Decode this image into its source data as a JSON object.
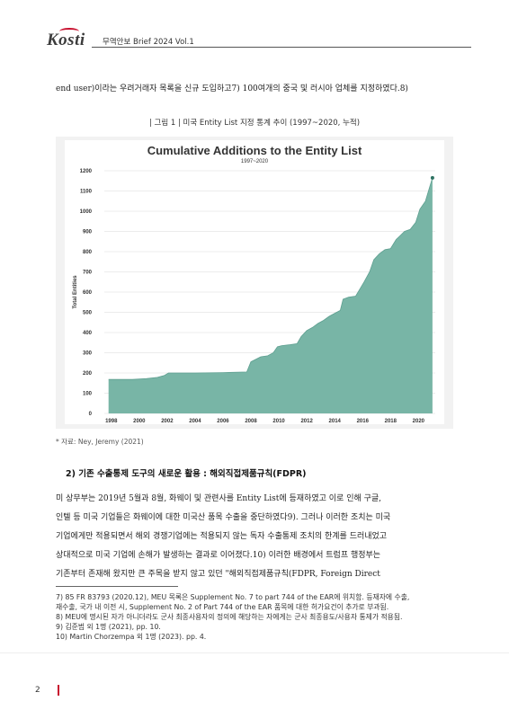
{
  "header": {
    "logo": "Kosti",
    "title": "무역안보 Brief 2024 Vol.1"
  },
  "intro_line": "end user)이라는 우려거래자 목록을 신규 도입하고7) 100여개의 중국 및 러시아 업체를 지정하였다.8)",
  "figure_caption": "| 그림 1 | 미국 Entity List 지정 통계 추이 (1997~2020, 누적)",
  "chart_data": {
    "type": "area",
    "title": "Cumulative Additions to the Entity List",
    "subtitle": "1997~2020",
    "ylabel": "Total Entities",
    "xlabel": "",
    "ylim": [
      0,
      1200
    ],
    "xlim": [
      1997.5,
      2021.2
    ],
    "yticks": [
      "0",
      "100",
      "200",
      "300",
      "400",
      "500",
      "600",
      "700",
      "800",
      "900",
      "1000",
      "1100",
      "1200"
    ],
    "xticks": [
      "1998",
      "2000",
      "2002",
      "2004",
      "2006",
      "2008",
      "2010",
      "2012",
      "2014",
      "2016",
      "2018",
      "2020"
    ],
    "grid": true,
    "color": "#78b5a6",
    "x": [
      1997.8,
      1999.5,
      2000.5,
      2001.3,
      2001.8,
      2002.1,
      2004.0,
      2006.0,
      2007.7,
      2008.0,
      2008.7,
      2009.2,
      2009.6,
      2009.9,
      2010.2,
      2010.8,
      2011.3,
      2011.6,
      2012.0,
      2012.4,
      2012.8,
      2013.2,
      2013.6,
      2014.0,
      2014.4,
      2014.6,
      2015.0,
      2015.5,
      2015.8,
      2016.1,
      2016.5,
      2016.8,
      2017.2,
      2017.6,
      2018.0,
      2018.4,
      2018.7,
      2019.0,
      2019.4,
      2019.8,
      2020.1,
      2020.5,
      2020.8,
      2021.0
    ],
    "y": [
      168,
      168,
      172,
      178,
      188,
      200,
      200,
      202,
      205,
      255,
      280,
      285,
      300,
      330,
      335,
      340,
      345,
      380,
      410,
      425,
      445,
      460,
      480,
      495,
      510,
      565,
      575,
      580,
      615,
      650,
      700,
      760,
      790,
      810,
      815,
      860,
      880,
      900,
      910,
      945,
      1010,
      1050,
      1120,
      1165
    ]
  },
  "source": "* 자료: Ney, Jeremy (2021)",
  "section_title": "2) 기존 수출통제 도구의 새로운 활용 : 해외직접제품규칙(FDPR)",
  "paragraph": [
    "미 상무부는 2019년 5월과 8월, 화웨이 및 관련사를 Entity List에 등재하였고 이로 인해 구글,",
    "인텔 등 미국 기업들은 화웨이에 대한 미국산 품목 수출을 중단하였다9). 그러나 이러한 조치는 미국",
    "기업에게만 적용되면서 해외 경쟁기업에는 적용되지 않는 독자 수출통제 조치의 한계를 드러내었고",
    "상대적으로 미국 기업에 손해가 발생하는 결과로 이어졌다.10) 이러한 배경에서 트럼프 행정부는",
    "기존부터 존재해 왔지만 큰 주목을 받지 않고 있던 \"해외직접제품규칙(FDPR, Foreign Direct"
  ],
  "footnotes": [
    "7) 85 FR 83793 (2020.12), MEU 목록은 Supplement No. 7 to part 744 of the EAR에 위치함. 등재자에 수출,",
    "   재수출, 국가 내 이전 시, Supplement No. 2 of Part 744 of the EAR 품목에 대한 허가요건이 추가로 부과됨.",
    "8) MEU에 명시된 자가 아니더라도 군사 최종사용자의 정의에 해당하는 자에게는 군사 최종용도/사용자 통제가 적용됨.",
    "9) 김준범 외 1명 (2021), pp. 10.",
    "10) Martin Chorzempa 외 1명 (2023). pp. 4."
  ],
  "page_number": "2"
}
